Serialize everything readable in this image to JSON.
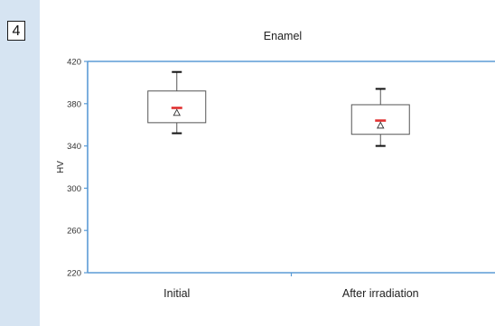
{
  "figure_number": "4",
  "chart_data": {
    "type": "box",
    "title": "Enamel",
    "xlabel": "",
    "ylabel": "HV",
    "ylim": [
      220,
      420
    ],
    "yticks": [
      420,
      380,
      340,
      300,
      260,
      220
    ],
    "categories": [
      "Initial",
      "After irradiation"
    ],
    "boxes": [
      {
        "category": "Initial",
        "whisker_low": 352,
        "q1": 362,
        "median": 376,
        "mean": 371,
        "q3": 392,
        "whisker_high": 410
      },
      {
        "category": "After irradiation",
        "whisker_low": 340,
        "q1": 351,
        "median": 364,
        "mean": 359,
        "q3": 379,
        "whisker_high": 394
      }
    ],
    "grid": false,
    "colors": {
      "axis": "#5b9bd5",
      "box": "#555555",
      "median": "#e03030",
      "mean_marker": "#333333"
    }
  }
}
